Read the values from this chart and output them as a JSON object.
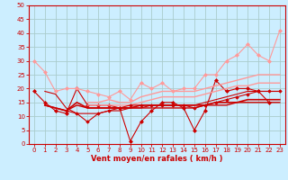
{
  "x": [
    0,
    1,
    2,
    3,
    4,
    5,
    6,
    7,
    8,
    9,
    10,
    11,
    12,
    13,
    14,
    15,
    16,
    17,
    18,
    19,
    20,
    21,
    22,
    23
  ],
  "lines": [
    {
      "y": [
        19,
        15,
        12,
        11,
        20,
        14,
        14,
        14,
        13,
        1,
        8,
        12,
        15,
        15,
        13,
        5,
        12,
        23,
        19,
        20,
        20,
        19,
        15,
        null
      ],
      "color": "#cc0000",
      "marker": "D",
      "lw": 0.8,
      "ms": 2.0
    },
    {
      "y": [
        30,
        26,
        19,
        20,
        20,
        19,
        18,
        17,
        19,
        16,
        22,
        20,
        22,
        19,
        20,
        20,
        25,
        25,
        30,
        32,
        36,
        32,
        30,
        41
      ],
      "color": "#ff9999",
      "marker": "D",
      "lw": 0.8,
      "ms": 2.0
    },
    {
      "y": [
        null,
        null,
        null,
        null,
        null,
        15,
        15,
        16,
        15,
        15,
        17,
        18,
        19,
        19,
        19,
        19,
        20,
        21,
        22,
        23,
        24,
        25,
        25,
        25
      ],
      "color": "#ff9999",
      "marker": null,
      "lw": 1.0,
      "ms": 0
    },
    {
      "y": [
        null,
        null,
        null,
        null,
        null,
        14,
        14,
        14,
        14,
        14,
        15,
        16,
        17,
        17,
        17,
        17,
        18,
        19,
        20,
        21,
        21,
        22,
        22,
        22
      ],
      "color": "#ff9999",
      "marker": null,
      "lw": 1.0,
      "ms": 0
    },
    {
      "y": [
        null,
        19,
        18,
        13,
        11,
        11,
        11,
        12,
        12,
        13,
        13,
        14,
        14,
        14,
        14,
        14,
        15,
        16,
        17,
        18,
        19,
        19,
        19,
        19
      ],
      "color": "#cc0000",
      "marker": null,
      "lw": 0.8,
      "ms": 0
    },
    {
      "y": [
        null,
        null,
        null,
        12,
        11,
        8,
        11,
        12,
        13,
        14,
        14,
        14,
        14,
        14,
        14,
        13,
        14,
        15,
        16,
        17,
        18,
        19,
        19,
        19
      ],
      "color": "#cc0000",
      "marker": "D",
      "lw": 0.8,
      "ms": 1.8
    },
    {
      "y": [
        null,
        14,
        13,
        12,
        15,
        13,
        13,
        13,
        13,
        13,
        14,
        14,
        14,
        14,
        14,
        14,
        14,
        15,
        15,
        15,
        16,
        16,
        16,
        16
      ],
      "color": "#cc0000",
      "marker": null,
      "lw": 1.2,
      "ms": 0
    },
    {
      "y": [
        null,
        14,
        13,
        12,
        14,
        13,
        13,
        13,
        13,
        13,
        13,
        13,
        13,
        13,
        13,
        13,
        14,
        14,
        14,
        15,
        15,
        15,
        15,
        15
      ],
      "color": "#cc0000",
      "marker": null,
      "lw": 1.0,
      "ms": 0
    }
  ],
  "ylim": [
    0,
    50
  ],
  "yticks": [
    0,
    5,
    10,
    15,
    20,
    25,
    30,
    35,
    40,
    45,
    50
  ],
  "xlim_min": -0.5,
  "xlim_max": 23.5,
  "xlabel": "Vent moyen/en rafales ( km/h )",
  "bg_color": "#cceeff",
  "grid_color": "#aacccc",
  "axis_color": "#cc0000",
  "label_color": "#cc0000",
  "tick_fontsize": 5,
  "xlabel_fontsize": 6,
  "ytick_fontsize": 5
}
